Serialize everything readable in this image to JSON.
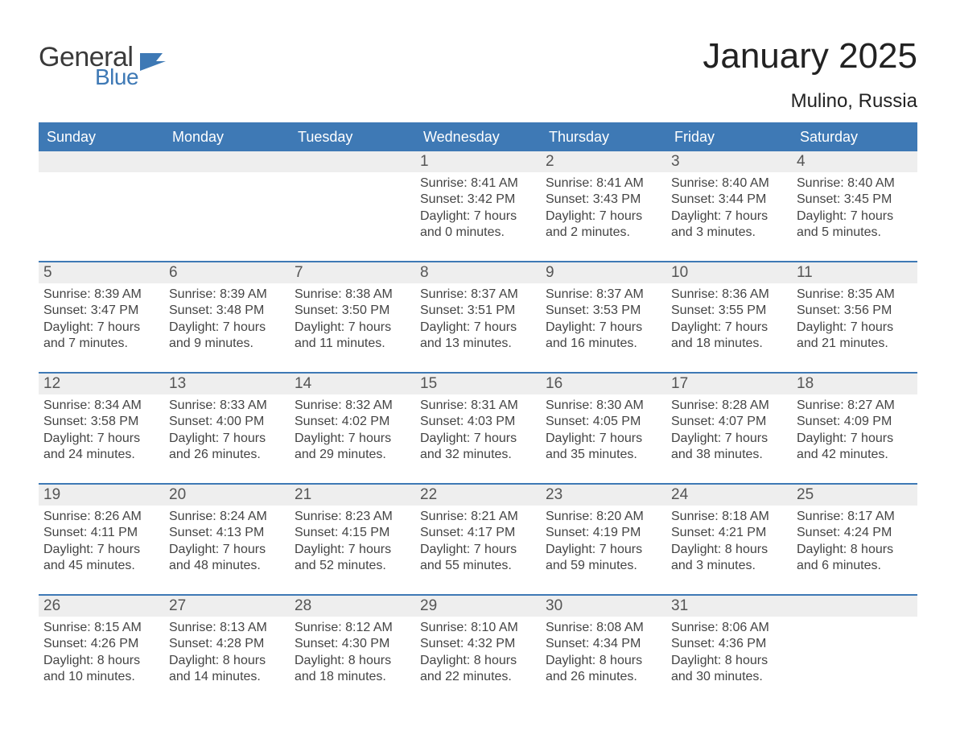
{
  "logo": {
    "general": "General",
    "blue": "Blue"
  },
  "title": "January 2025",
  "location": "Mulino, Russia",
  "colors": {
    "header_bg": "#3e79b5",
    "header_text": "#ffffff",
    "daynum_bg": "#eeeeee",
    "week_divider": "#3e79b5",
    "page_bg": "#ffffff",
    "text": "#333333"
  },
  "typography": {
    "title_fontsize_pt": 33,
    "location_fontsize_pt": 18,
    "dow_fontsize_pt": 14,
    "daynum_fontsize_pt": 14,
    "cell_fontsize_pt": 12
  },
  "days_of_week": [
    "Sunday",
    "Monday",
    "Tuesday",
    "Wednesday",
    "Thursday",
    "Friday",
    "Saturday"
  ],
  "weeks": [
    [
      {
        "num": "",
        "sunrise": "",
        "sunset": "",
        "daylight": ""
      },
      {
        "num": "",
        "sunrise": "",
        "sunset": "",
        "daylight": ""
      },
      {
        "num": "",
        "sunrise": "",
        "sunset": "",
        "daylight": ""
      },
      {
        "num": "1",
        "sunrise": "Sunrise: 8:41 AM",
        "sunset": "Sunset: 3:42 PM",
        "daylight": "Daylight: 7 hours and 0 minutes."
      },
      {
        "num": "2",
        "sunrise": "Sunrise: 8:41 AM",
        "sunset": "Sunset: 3:43 PM",
        "daylight": "Daylight: 7 hours and 2 minutes."
      },
      {
        "num": "3",
        "sunrise": "Sunrise: 8:40 AM",
        "sunset": "Sunset: 3:44 PM",
        "daylight": "Daylight: 7 hours and 3 minutes."
      },
      {
        "num": "4",
        "sunrise": "Sunrise: 8:40 AM",
        "sunset": "Sunset: 3:45 PM",
        "daylight": "Daylight: 7 hours and 5 minutes."
      }
    ],
    [
      {
        "num": "5",
        "sunrise": "Sunrise: 8:39 AM",
        "sunset": "Sunset: 3:47 PM",
        "daylight": "Daylight: 7 hours and 7 minutes."
      },
      {
        "num": "6",
        "sunrise": "Sunrise: 8:39 AM",
        "sunset": "Sunset: 3:48 PM",
        "daylight": "Daylight: 7 hours and 9 minutes."
      },
      {
        "num": "7",
        "sunrise": "Sunrise: 8:38 AM",
        "sunset": "Sunset: 3:50 PM",
        "daylight": "Daylight: 7 hours and 11 minutes."
      },
      {
        "num": "8",
        "sunrise": "Sunrise: 8:37 AM",
        "sunset": "Sunset: 3:51 PM",
        "daylight": "Daylight: 7 hours and 13 minutes."
      },
      {
        "num": "9",
        "sunrise": "Sunrise: 8:37 AM",
        "sunset": "Sunset: 3:53 PM",
        "daylight": "Daylight: 7 hours and 16 minutes."
      },
      {
        "num": "10",
        "sunrise": "Sunrise: 8:36 AM",
        "sunset": "Sunset: 3:55 PM",
        "daylight": "Daylight: 7 hours and 18 minutes."
      },
      {
        "num": "11",
        "sunrise": "Sunrise: 8:35 AM",
        "sunset": "Sunset: 3:56 PM",
        "daylight": "Daylight: 7 hours and 21 minutes."
      }
    ],
    [
      {
        "num": "12",
        "sunrise": "Sunrise: 8:34 AM",
        "sunset": "Sunset: 3:58 PM",
        "daylight": "Daylight: 7 hours and 24 minutes."
      },
      {
        "num": "13",
        "sunrise": "Sunrise: 8:33 AM",
        "sunset": "Sunset: 4:00 PM",
        "daylight": "Daylight: 7 hours and 26 minutes."
      },
      {
        "num": "14",
        "sunrise": "Sunrise: 8:32 AM",
        "sunset": "Sunset: 4:02 PM",
        "daylight": "Daylight: 7 hours and 29 minutes."
      },
      {
        "num": "15",
        "sunrise": "Sunrise: 8:31 AM",
        "sunset": "Sunset: 4:03 PM",
        "daylight": "Daylight: 7 hours and 32 minutes."
      },
      {
        "num": "16",
        "sunrise": "Sunrise: 8:30 AM",
        "sunset": "Sunset: 4:05 PM",
        "daylight": "Daylight: 7 hours and 35 minutes."
      },
      {
        "num": "17",
        "sunrise": "Sunrise: 8:28 AM",
        "sunset": "Sunset: 4:07 PM",
        "daylight": "Daylight: 7 hours and 38 minutes."
      },
      {
        "num": "18",
        "sunrise": "Sunrise: 8:27 AM",
        "sunset": "Sunset: 4:09 PM",
        "daylight": "Daylight: 7 hours and 42 minutes."
      }
    ],
    [
      {
        "num": "19",
        "sunrise": "Sunrise: 8:26 AM",
        "sunset": "Sunset: 4:11 PM",
        "daylight": "Daylight: 7 hours and 45 minutes."
      },
      {
        "num": "20",
        "sunrise": "Sunrise: 8:24 AM",
        "sunset": "Sunset: 4:13 PM",
        "daylight": "Daylight: 7 hours and 48 minutes."
      },
      {
        "num": "21",
        "sunrise": "Sunrise: 8:23 AM",
        "sunset": "Sunset: 4:15 PM",
        "daylight": "Daylight: 7 hours and 52 minutes."
      },
      {
        "num": "22",
        "sunrise": "Sunrise: 8:21 AM",
        "sunset": "Sunset: 4:17 PM",
        "daylight": "Daylight: 7 hours and 55 minutes."
      },
      {
        "num": "23",
        "sunrise": "Sunrise: 8:20 AM",
        "sunset": "Sunset: 4:19 PM",
        "daylight": "Daylight: 7 hours and 59 minutes."
      },
      {
        "num": "24",
        "sunrise": "Sunrise: 8:18 AM",
        "sunset": "Sunset: 4:21 PM",
        "daylight": "Daylight: 8 hours and 3 minutes."
      },
      {
        "num": "25",
        "sunrise": "Sunrise: 8:17 AM",
        "sunset": "Sunset: 4:24 PM",
        "daylight": "Daylight: 8 hours and 6 minutes."
      }
    ],
    [
      {
        "num": "26",
        "sunrise": "Sunrise: 8:15 AM",
        "sunset": "Sunset: 4:26 PM",
        "daylight": "Daylight: 8 hours and 10 minutes."
      },
      {
        "num": "27",
        "sunrise": "Sunrise: 8:13 AM",
        "sunset": "Sunset: 4:28 PM",
        "daylight": "Daylight: 8 hours and 14 minutes."
      },
      {
        "num": "28",
        "sunrise": "Sunrise: 8:12 AM",
        "sunset": "Sunset: 4:30 PM",
        "daylight": "Daylight: 8 hours and 18 minutes."
      },
      {
        "num": "29",
        "sunrise": "Sunrise: 8:10 AM",
        "sunset": "Sunset: 4:32 PM",
        "daylight": "Daylight: 8 hours and 22 minutes."
      },
      {
        "num": "30",
        "sunrise": "Sunrise: 8:08 AM",
        "sunset": "Sunset: 4:34 PM",
        "daylight": "Daylight: 8 hours and 26 minutes."
      },
      {
        "num": "31",
        "sunrise": "Sunrise: 8:06 AM",
        "sunset": "Sunset: 4:36 PM",
        "daylight": "Daylight: 8 hours and 30 minutes."
      },
      {
        "num": "",
        "sunrise": "",
        "sunset": "",
        "daylight": ""
      }
    ]
  ]
}
